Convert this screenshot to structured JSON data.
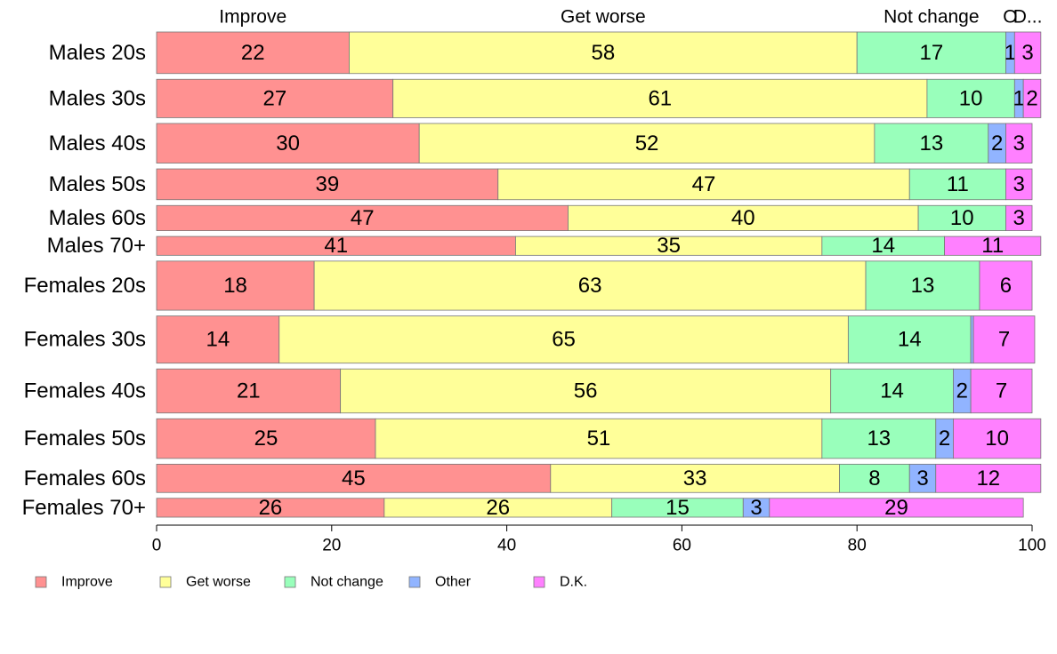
{
  "chart_data": {
    "type": "bar",
    "orientation": "horizontal",
    "stacked": true,
    "top_labels": [
      "Improve",
      "Get worse",
      "Not change",
      "O",
      "D..."
    ],
    "categories": [
      "Males 20s",
      "Males 30s",
      "Males 40s",
      "Males 50s",
      "Males 60s",
      "Males 70+",
      "Females 20s",
      "Females 30s",
      "Females 40s",
      "Females 50s",
      "Females 60s",
      "Females 70+"
    ],
    "category_weights": [
      66,
      61,
      63,
      49,
      40,
      30,
      78,
      75,
      70,
      63,
      45,
      30
    ],
    "series": [
      {
        "name": "Improve",
        "color": "#ff9191",
        "values": [
          22,
          27,
          30,
          39,
          47,
          41,
          18,
          14,
          21,
          25,
          45,
          26
        ]
      },
      {
        "name": "Get worse",
        "color": "#ffff99",
        "values": [
          58,
          61,
          52,
          47,
          40,
          35,
          63,
          65,
          56,
          51,
          33,
          26
        ]
      },
      {
        "name": "Not change",
        "color": "#99ffbb",
        "values": [
          17,
          10,
          13,
          11,
          10,
          14,
          13,
          14,
          14,
          13,
          8,
          15
        ]
      },
      {
        "name": "Other",
        "color": "#91b4ff",
        "values": [
          1,
          1,
          2,
          0,
          0,
          0,
          0,
          0.3,
          2,
          2,
          3,
          3
        ]
      },
      {
        "name": "D.K.",
        "color": "#ff80ff",
        "values": [
          3,
          2,
          3,
          3,
          3,
          11,
          6,
          7,
          7,
          10,
          12,
          29
        ]
      }
    ],
    "value_labels": [
      [
        "22",
        "58",
        "17",
        "1",
        "3"
      ],
      [
        "27",
        "61",
        "10",
        "1",
        "2"
      ],
      [
        "30",
        "52",
        "13",
        "2",
        "3"
      ],
      [
        "39",
        "47",
        "11",
        "",
        "3"
      ],
      [
        "47",
        "40",
        "10",
        "",
        "3"
      ],
      [
        "41",
        "35",
        "14",
        "",
        "11"
      ],
      [
        "18",
        "63",
        "13",
        "",
        "6"
      ],
      [
        "14",
        "65",
        "14",
        "",
        "7"
      ],
      [
        "21",
        "56",
        "14",
        "2",
        "7"
      ],
      [
        "25",
        "51",
        "13",
        "2",
        "10"
      ],
      [
        "45",
        "33",
        "8",
        "3",
        "12"
      ],
      [
        "26",
        "26",
        "15",
        "3",
        "29"
      ]
    ],
    "xlim": [
      0,
      100
    ],
    "xticks": [
      0,
      20,
      40,
      60,
      80,
      100
    ],
    "grid": false,
    "legend_position": "bottom-left"
  }
}
